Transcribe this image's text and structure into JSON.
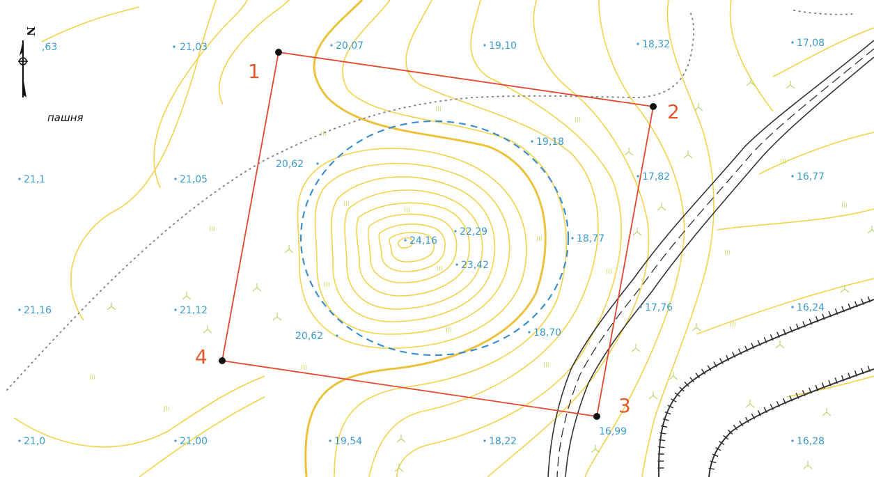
{
  "land_label": "пашня",
  "north_label": "N",
  "corners": [
    {
      "label": "1"
    },
    {
      "label": "2"
    },
    {
      "label": "3"
    },
    {
      "label": "4"
    }
  ],
  "elevations": {
    "e_2063": ",63",
    "e_2103": "21,03",
    "e_2007": "20,07",
    "e_1910": "19,10",
    "e_1832": "18,32",
    "e_1708": "17,08",
    "e_1918": "19,18",
    "e_2062a": "20,62",
    "e_2111": "21,1",
    "e_2105": "21,05",
    "e_1782": "17,82",
    "e_1677": "16,77",
    "e_2416": "24,16",
    "e_2229": "22,29",
    "e_1877": "18,77",
    "e_2342": "23,42",
    "e_2116": "21,16",
    "e_2112": "21,12",
    "e_1776": "17,76",
    "e_1624": "16,24",
    "e_2062b": "20,62",
    "e_1870": "18,70",
    "e_2101": "21,0",
    "e_2100": "21,00",
    "e_1954": "19,54",
    "e_1822": "18,22",
    "e_1699": "16,99",
    "e_1628": "16,28"
  },
  "colors": {
    "boundary": "#e2472c",
    "contour": "#f2d24a",
    "elevation_text": "#3a9ac8",
    "buffer": "#3a8ed0",
    "road": "#333333"
  }
}
